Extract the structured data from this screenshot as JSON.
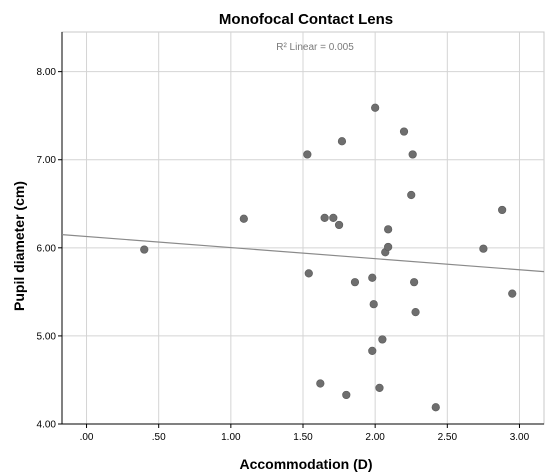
{
  "chart_data": {
    "type": "scatter",
    "title": "Monofocal Contact Lens",
    "xlabel": "Accommodation (D)",
    "ylabel": "Pupil diameter (cm)",
    "xlim": [
      -0.17,
      3.17
    ],
    "ylim": [
      4.0,
      8.45
    ],
    "x_ticks": [
      0,
      0.5,
      1,
      1.5,
      2,
      2.5,
      3
    ],
    "x_tick_labels": [
      ".00",
      ".50",
      "1.00",
      "1.50",
      "2.00",
      "2.50",
      "3.00"
    ],
    "y_ticks": [
      4,
      5,
      6,
      7,
      8
    ],
    "y_tick_labels": [
      "4.00",
      "5.00",
      "6.00",
      "7.00",
      "8.00"
    ],
    "grid": true,
    "annotation": "R² Linear = 0.005",
    "fit_line": {
      "x": [
        -0.17,
        3.17
      ],
      "y": [
        6.15,
        5.73
      ]
    },
    "points": [
      {
        "x": 0.4,
        "y": 5.98
      },
      {
        "x": 1.09,
        "y": 6.33
      },
      {
        "x": 1.53,
        "y": 7.06
      },
      {
        "x": 1.54,
        "y": 5.71
      },
      {
        "x": 1.62,
        "y": 4.46
      },
      {
        "x": 1.65,
        "y": 6.34
      },
      {
        "x": 1.71,
        "y": 6.34
      },
      {
        "x": 1.75,
        "y": 6.26
      },
      {
        "x": 1.77,
        "y": 7.21
      },
      {
        "x": 1.8,
        "y": 4.33
      },
      {
        "x": 1.86,
        "y": 5.61
      },
      {
        "x": 1.98,
        "y": 4.83
      },
      {
        "x": 1.98,
        "y": 5.66
      },
      {
        "x": 1.99,
        "y": 5.36
      },
      {
        "x": 2.0,
        "y": 7.59
      },
      {
        "x": 2.03,
        "y": 4.41
      },
      {
        "x": 2.05,
        "y": 4.96
      },
      {
        "x": 2.07,
        "y": 5.95
      },
      {
        "x": 2.09,
        "y": 6.21
      },
      {
        "x": 2.09,
        "y": 6.01
      },
      {
        "x": 2.2,
        "y": 7.32
      },
      {
        "x": 2.25,
        "y": 6.6
      },
      {
        "x": 2.26,
        "y": 7.06
      },
      {
        "x": 2.27,
        "y": 5.61
      },
      {
        "x": 2.28,
        "y": 5.27
      },
      {
        "x": 2.42,
        "y": 4.19
      },
      {
        "x": 2.75,
        "y": 5.99
      },
      {
        "x": 2.88,
        "y": 6.43
      },
      {
        "x": 2.95,
        "y": 5.48
      }
    ]
  }
}
